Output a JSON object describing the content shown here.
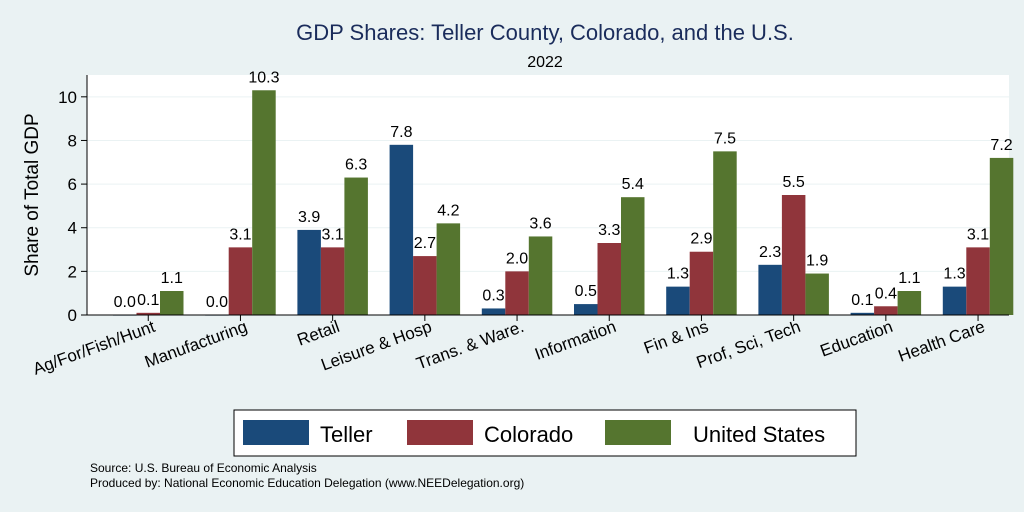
{
  "chart_data": {
    "type": "bar",
    "title": "GDP Shares: Teller County, Colorado, and the U.S.",
    "subtitle": "2022",
    "ylabel": "Share of Total GDP",
    "xlabel": "",
    "ylim": [
      0,
      11
    ],
    "yticks": [
      0,
      2,
      4,
      6,
      8,
      10
    ],
    "grid": true,
    "legend_position": "bottom",
    "categories": [
      "Ag/For/Fish/Hunt",
      "Manufacturing",
      "Retail",
      "Leisure & Hosp",
      "Trans. & Ware.",
      "Information",
      "Fin & Ins",
      "Prof, Sci, Tech",
      "Education",
      "Health Care"
    ],
    "series": [
      {
        "name": "Teller",
        "color": "#1a4a7a",
        "values": [
          0.0,
          0.0,
          3.9,
          7.8,
          0.3,
          0.5,
          1.3,
          2.3,
          0.1,
          1.3
        ]
      },
      {
        "name": "Colorado",
        "color": "#90353b",
        "values": [
          0.1,
          3.1,
          3.1,
          2.7,
          2.0,
          3.3,
          2.9,
          5.5,
          0.4,
          3.1
        ]
      },
      {
        "name": "United States",
        "color": "#55752f",
        "values": [
          1.1,
          10.3,
          6.3,
          4.2,
          3.6,
          5.4,
          7.5,
          1.9,
          1.1,
          7.2
        ]
      }
    ],
    "data_labels": [
      [
        "0.0",
        "0.0",
        "3.9",
        "7.8",
        "0.3",
        "0.5",
        "1.3",
        "2.3",
        "0.1",
        "1.3"
      ],
      [
        "0.1",
        "3.1",
        "3.1",
        "2.7",
        "2.0",
        "3.3",
        "2.9",
        "5.5",
        "0.4",
        "3.1"
      ],
      [
        "1.1",
        "10.3",
        "6.3",
        "4.2",
        "3.6",
        "5.4",
        "7.5",
        "1.9",
        "1.1",
        "7.2"
      ]
    ]
  },
  "notes": {
    "source": "Source: U.S. Bureau of Economic Analysis",
    "produced_by": "Produced by: National Economic Education Delegation (www.NEEDelegation.org)"
  }
}
